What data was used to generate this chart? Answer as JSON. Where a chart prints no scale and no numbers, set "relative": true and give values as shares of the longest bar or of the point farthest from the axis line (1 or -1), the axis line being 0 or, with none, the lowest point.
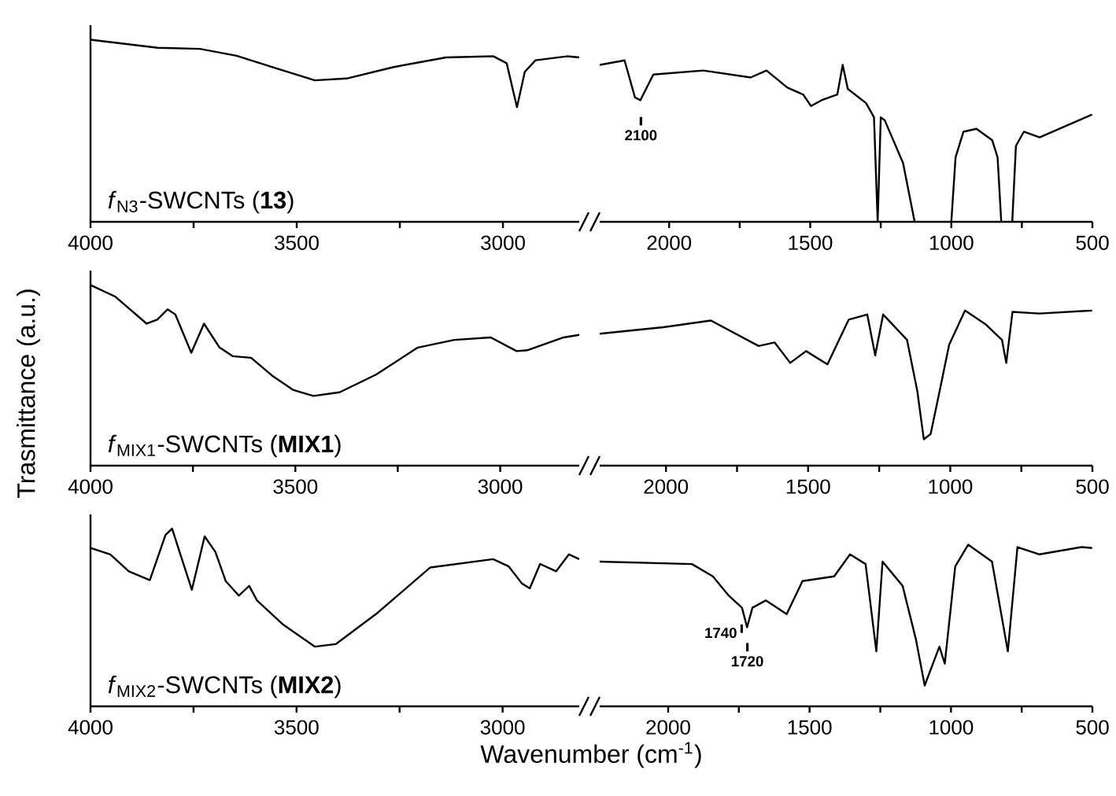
{
  "chart_data": [
    {
      "type": "line",
      "relative": true,
      "title": "*f*$_{N3}$-SWCNTs (**13**)",
      "tick_labels": "x",
      "xlim": [
        4000,
        2815
      ],
      "xticks": [
        4000,
        {
          "value": 3750,
          "label": null
        },
        3500,
        {
          "value": 3250,
          "label": null
        },
        3000
      ],
      "x": [
        4000,
        3837,
        3735,
        3646,
        3545,
        3456,
        3379,
        3265,
        3138,
        3023,
        2991,
        2966,
        2947,
        2921,
        2845,
        2815
      ],
      "series": [
        {
          "color": "#000000",
          "values": [
            1.0,
            0.956,
            0.95,
            0.912,
            0.84,
            0.777,
            0.787,
            0.85,
            0.903,
            0.909,
            0.871,
            0.63,
            0.824,
            0.887,
            0.909,
            0.903
          ]
        }
      ]
    },
    {
      "type": "line",
      "relative": true,
      "tick_labels": "x",
      "xlim": [
        2246,
        500
      ],
      "xticks": [
        2000,
        {
          "value": 1750,
          "label": null
        },
        1500,
        {
          "value": 1250,
          "label": null
        },
        1000,
        {
          "value": 750,
          "label": null
        },
        500
      ],
      "x": [
        2246,
        2158,
        2121,
        2102,
        2056,
        1879,
        1711,
        1655,
        1581,
        1525,
        1497,
        1460,
        1404,
        1385,
        1367,
        1302,
        1274,
        1261,
        1250,
        1236,
        1171,
        1130,
        1065,
        1000,
        985,
        957,
        911,
        855,
        836,
        823,
        804,
        784,
        771,
        743,
        687,
        594,
        501
      ],
      "series": [
        {
          "color": "#000000",
          "values": [
            0.972,
            1.0,
            0.77,
            0.753,
            0.912,
            0.937,
            0.894,
            0.937,
            0.831,
            0.788,
            0.717,
            0.753,
            0.788,
            0.972,
            0.823,
            0.735,
            0.647,
            0.0,
            0.647,
            0.629,
            0.364,
            0.0,
            null,
            0.0,
            0.399,
            0.558,
            0.576,
            0.505,
            0.399,
            0.0,
            null,
            0.0,
            0.47,
            0.558,
            0.523,
            0.594,
            0.664
          ]
        }
      ],
      "annotations": [
        {
          "text": "2100",
          "x": 2100,
          "y": 0.753
        }
      ]
    },
    {
      "type": "line",
      "relative": true,
      "title": "*f*$_{MIX1}$-SWCNTs (**MIX1**)",
      "ylabel": "Trasmittance (a.u.)",
      "tick_labels": "x",
      "xlim": [
        4000,
        2807
      ],
      "xticks": [
        4000,
        {
          "value": 3750,
          "label": null
        },
        3500,
        {
          "value": 3250,
          "label": null
        },
        3000
      ],
      "x": [
        4000,
        3939,
        3863,
        3837,
        3812,
        3793,
        3754,
        3723,
        3685,
        3653,
        3608,
        3557,
        3506,
        3456,
        3392,
        3303,
        3201,
        3112,
        3023,
        2960,
        2934,
        2845,
        2807
      ],
      "series": [
        {
          "color": "#000000",
          "values": [
            1.0,
            0.935,
            0.786,
            0.808,
            0.865,
            0.837,
            0.625,
            0.786,
            0.654,
            0.606,
            0.597,
            0.499,
            0.42,
            0.386,
            0.406,
            0.504,
            0.654,
            0.696,
            0.71,
            0.634,
            0.639,
            0.71,
            0.724
          ]
        }
      ]
    },
    {
      "type": "line",
      "relative": true,
      "tick_labels": "x",
      "xlim": [
        2233,
        500
      ],
      "xticks": [
        2000,
        {
          "value": 1750,
          "label": null
        },
        1500,
        {
          "value": 1250,
          "label": null
        },
        1000,
        {
          "value": 750,
          "label": null
        },
        500
      ],
      "x": [
        2233,
        2009,
        1842,
        1674,
        1618,
        1563,
        1507,
        1432,
        1357,
        1292,
        1264,
        1236,
        1152,
        1116,
        1093,
        1069,
        1041,
        1004,
        948,
        874,
        818,
        803,
        781,
        687,
        501
      ],
      "series": [
        {
          "color": "#000000",
          "values": [
            0.85,
            0.892,
            0.935,
            0.771,
            0.794,
            0.662,
            0.738,
            0.653,
            0.941,
            0.974,
            0.711,
            0.974,
            0.81,
            0.482,
            0.17,
            0.204,
            0.449,
            0.778,
            1.0,
            0.908,
            0.81,
            0.662,
            0.991,
            0.98,
            1.0
          ]
        }
      ]
    },
    {
      "type": "line",
      "relative": true,
      "title": "*f*$_{MIX2}$-SWCNTs (**MIX2**)",
      "tick_labels": "x",
      "xlim": [
        4000,
        2814
      ],
      "xticks": [
        4000,
        {
          "value": 3750,
          "label": null
        },
        3500,
        {
          "value": 3250,
          "label": null
        },
        3000
      ],
      "x": [
        4000,
        3952,
        3907,
        3856,
        3818,
        3802,
        3780,
        3754,
        3723,
        3697,
        3672,
        3640,
        3615,
        3596,
        3532,
        3456,
        3405,
        3303,
        3176,
        3023,
        2985,
        2953,
        2934,
        2909,
        2870,
        2839,
        2814
      ],
      "series": [
        {
          "color": "#000000",
          "values": [
            0.891,
            0.855,
            0.76,
            0.71,
            0.964,
            1.0,
            0.842,
            0.656,
            0.956,
            0.869,
            0.705,
            0.623,
            0.678,
            0.596,
            0.459,
            0.336,
            0.35,
            0.527,
            0.781,
            0.828,
            0.787,
            0.691,
            0.664,
            0.801,
            0.76,
            0.855,
            0.828
          ]
        }
      ]
    },
    {
      "type": "line",
      "relative": true,
      "xlabel": "Wavenumber (cm$^{-1}$)",
      "tick_labels": "x",
      "xlim": [
        2242,
        500
      ],
      "xticks": [
        2000,
        {
          "value": 1750,
          "label": null
        },
        1500,
        {
          "value": 1250,
          "label": null
        },
        1000,
        {
          "value": 750,
          "label": null
        },
        500
      ],
      "x": [
        2242,
        1916,
        1842,
        1786,
        1739,
        1721,
        1702,
        1655,
        1581,
        1525,
        1413,
        1357,
        1302,
        1264,
        1242,
        1171,
        1124,
        1093,
        1041,
        1022,
        985,
        939,
        855,
        799,
        765,
        687,
        538,
        501
      ],
      "series": [
        {
          "color": "#000000",
          "values": [
            0.895,
            0.88,
            0.804,
            0.685,
            0.61,
            0.489,
            0.61,
            0.655,
            0.57,
            0.775,
            0.804,
            0.94,
            0.88,
            0.34,
            0.895,
            0.745,
            0.414,
            0.129,
            0.369,
            0.264,
            0.865,
            1.0,
            0.895,
            0.34,
            0.985,
            0.94,
            0.985,
            0.979
          ]
        }
      ],
      "annotations": [
        {
          "text": "1740",
          "x": 1740,
          "y": 0.61
        },
        {
          "text": "1720",
          "x": 1720,
          "y": 0.495
        }
      ]
    }
  ]
}
